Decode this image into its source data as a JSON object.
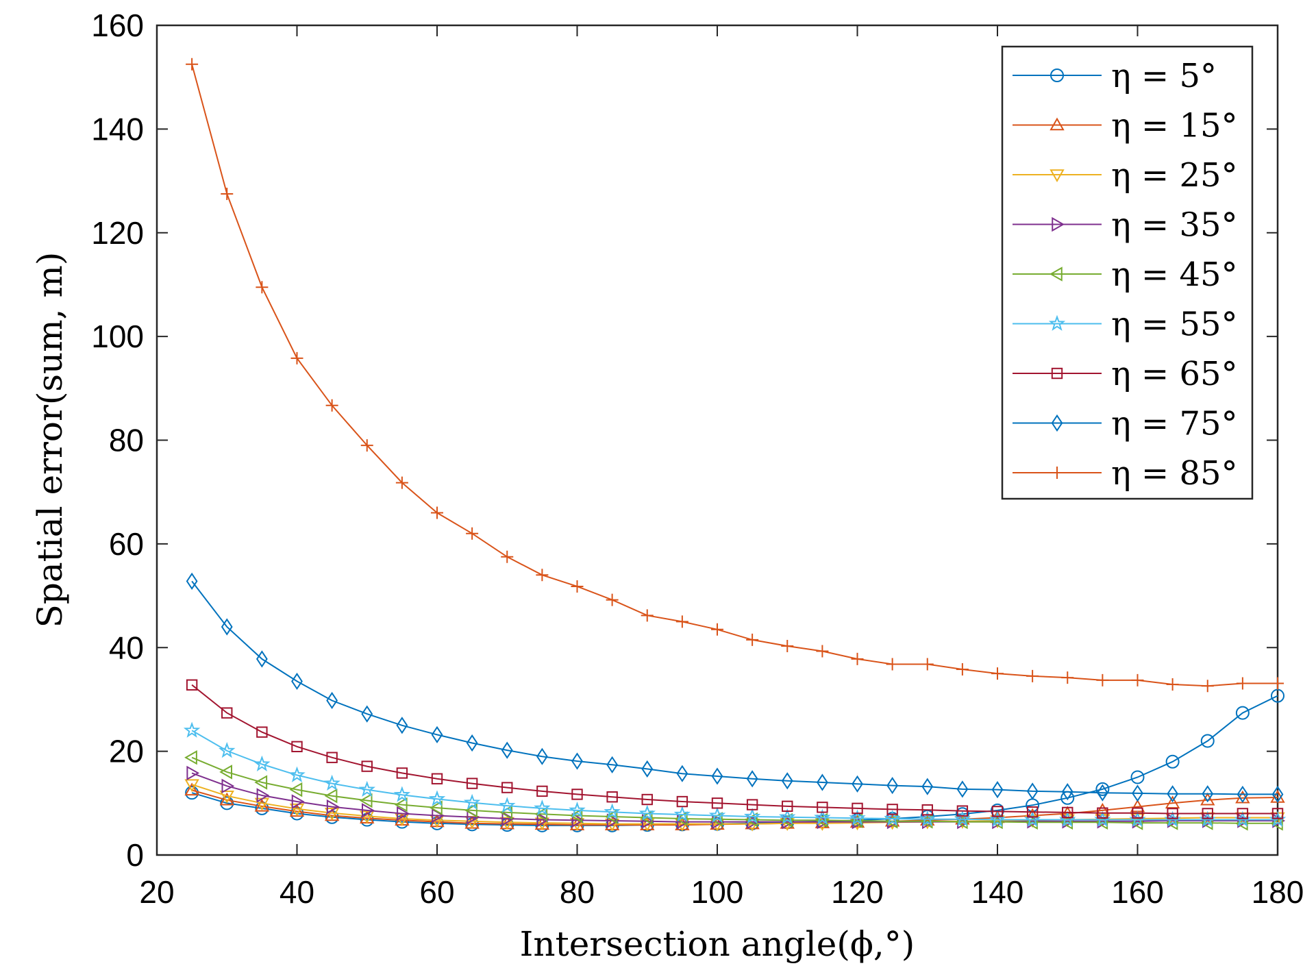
{
  "chart_data": {
    "type": "line",
    "title": "",
    "xlabel": "Intersection angle(ϕ,°)",
    "ylabel": "Spatial error(sum, m)",
    "xlim": [
      20,
      180
    ],
    "ylim": [
      0,
      160
    ],
    "xticks": [
      "20",
      "40",
      "60",
      "80",
      "100",
      "120",
      "140",
      "160",
      "180"
    ],
    "yticks": [
      "0",
      "20",
      "40",
      "60",
      "80",
      "100",
      "120",
      "140",
      "160"
    ],
    "legend_position": "top-right",
    "x": [
      25,
      30,
      35,
      40,
      45,
      50,
      55,
      60,
      65,
      70,
      75,
      80,
      85,
      90,
      95,
      100,
      105,
      110,
      115,
      120,
      125,
      130,
      135,
      140,
      145,
      150,
      155,
      160,
      165,
      170,
      175,
      180
    ],
    "series": [
      {
        "name": "η = 5°",
        "color": "#0072BD",
        "marker": "circle",
        "values": [
          12.0,
          10.0,
          9.0,
          8.0,
          7.3,
          6.8,
          6.4,
          6.1,
          5.9,
          5.8,
          5.7,
          5.7,
          5.7,
          5.8,
          5.9,
          6.0,
          6.1,
          6.3,
          6.5,
          6.7,
          7.0,
          7.4,
          7.9,
          8.6,
          9.6,
          11.0,
          12.7,
          15.0,
          18.0,
          22.0,
          27.4,
          30.7
        ]
      },
      {
        "name": "η = 15°",
        "color": "#D95319",
        "marker": "triangle-up",
        "values": [
          12.5,
          10.6,
          9.4,
          8.4,
          7.6,
          7.1,
          6.7,
          6.4,
          6.1,
          6.0,
          5.9,
          5.8,
          5.8,
          5.8,
          5.8,
          5.9,
          6.0,
          6.1,
          6.2,
          6.3,
          6.5,
          6.7,
          6.9,
          7.2,
          7.6,
          8.0,
          8.6,
          9.3,
          10.0,
          10.6,
          11.0,
          11.1
        ]
      },
      {
        "name": "η = 25°",
        "color": "#EDB120",
        "marker": "triangle-down",
        "values": [
          13.6,
          11.4,
          10.0,
          8.9,
          8.1,
          7.5,
          7.0,
          6.7,
          6.5,
          6.3,
          6.2,
          6.1,
          6.0,
          6.0,
          6.0,
          6.0,
          6.0,
          6.1,
          6.1,
          6.2,
          6.3,
          6.4,
          6.5,
          6.6,
          6.7,
          6.8,
          6.9,
          7.0,
          7.1,
          7.2,
          7.2,
          7.2
        ]
      },
      {
        "name": "η = 35°",
        "color": "#7E2F8E",
        "marker": "triangle-right",
        "values": [
          15.8,
          13.3,
          11.5,
          10.3,
          9.3,
          8.6,
          8.0,
          7.6,
          7.3,
          7.0,
          6.8,
          6.7,
          6.6,
          6.5,
          6.4,
          6.4,
          6.4,
          6.4,
          6.4,
          6.4,
          6.4,
          6.4,
          6.4,
          6.4,
          6.5,
          6.5,
          6.5,
          6.5,
          6.6,
          6.6,
          6.6,
          6.6
        ]
      },
      {
        "name": "η = 45°",
        "color": "#77AC30",
        "marker": "triangle-left",
        "values": [
          18.8,
          16.0,
          14.0,
          12.6,
          11.4,
          10.5,
          9.7,
          9.1,
          8.6,
          8.2,
          7.9,
          7.6,
          7.4,
          7.2,
          7.0,
          6.9,
          6.8,
          6.7,
          6.7,
          6.6,
          6.5,
          6.5,
          6.4,
          6.4,
          6.3,
          6.3,
          6.3,
          6.2,
          6.2,
          6.2,
          6.1,
          6.1
        ]
      },
      {
        "name": "η = 55°",
        "color": "#4DBEEE",
        "marker": "star",
        "values": [
          24.0,
          20.1,
          17.5,
          15.4,
          13.8,
          12.6,
          11.6,
          10.8,
          10.1,
          9.5,
          9.0,
          8.6,
          8.3,
          8.0,
          7.8,
          7.6,
          7.4,
          7.3,
          7.2,
          7.1,
          7.0,
          6.9,
          6.9,
          6.8,
          6.8,
          6.8,
          6.8,
          6.8,
          6.8,
          6.8,
          6.8,
          6.8
        ]
      },
      {
        "name": "η = 65°",
        "color": "#A2142F",
        "marker": "square",
        "values": [
          32.8,
          27.4,
          23.7,
          20.9,
          18.8,
          17.1,
          15.8,
          14.7,
          13.8,
          13.0,
          12.3,
          11.7,
          11.2,
          10.7,
          10.3,
          10.0,
          9.7,
          9.4,
          9.2,
          9.0,
          8.8,
          8.7,
          8.5,
          8.4,
          8.3,
          8.2,
          8.1,
          8.1,
          8.0,
          8.0,
          8.0,
          8.0
        ]
      },
      {
        "name": "η = 75°",
        "color": "#0072BD",
        "marker": "diamond",
        "values": [
          52.8,
          44.0,
          37.8,
          33.5,
          29.8,
          27.2,
          25.0,
          23.2,
          21.6,
          20.2,
          19.0,
          18.1,
          17.4,
          16.6,
          15.7,
          15.2,
          14.7,
          14.3,
          14.0,
          13.7,
          13.4,
          13.2,
          12.7,
          12.6,
          12.3,
          12.2,
          12.0,
          11.9,
          11.8,
          11.8,
          11.7,
          11.7
        ]
      },
      {
        "name": "η = 85°",
        "color": "#D95319",
        "marker": "plus",
        "values": [
          152.5,
          127.5,
          109.5,
          95.8,
          86.7,
          79.0,
          71.8,
          66.0,
          62.0,
          57.5,
          54.0,
          51.8,
          49.2,
          46.2,
          45.0,
          43.5,
          41.5,
          40.3,
          39.3,
          37.8,
          36.8,
          36.8,
          35.8,
          35.0,
          34.5,
          34.2,
          33.7,
          33.7,
          32.9,
          32.6,
          33.1,
          33.1
        ]
      }
    ]
  }
}
